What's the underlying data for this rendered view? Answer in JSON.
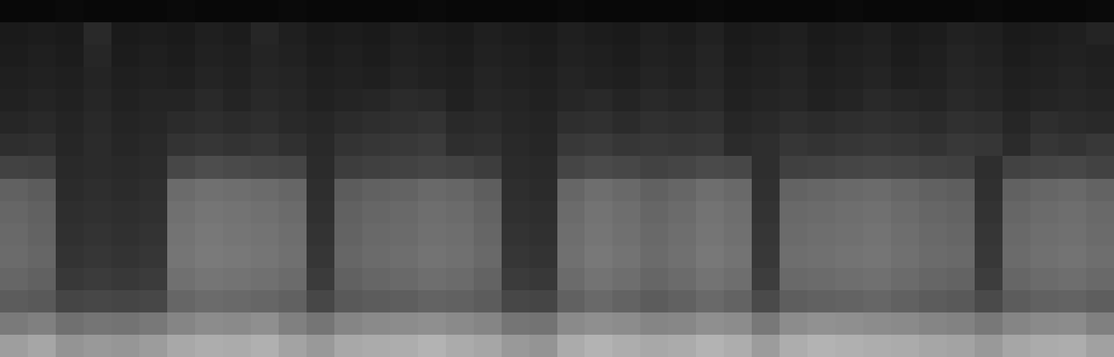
{
  "chart_data": {
    "type": "heatmap",
    "tick_labels": false,
    "zlim": [
      0,
      100
    ],
    "cells": [
      [
        3,
        3,
        4,
        3,
        3,
        3,
        4,
        3,
        3,
        3,
        4,
        3,
        3,
        3,
        3,
        4,
        3,
        3,
        3,
        3,
        4,
        3,
        3,
        3,
        3,
        4,
        3,
        3,
        3,
        3,
        4,
        3,
        3,
        3,
        3,
        4,
        3,
        3,
        3,
        4
      ],
      [
        10,
        11,
        10,
        16,
        10,
        11,
        10,
        12,
        11,
        15,
        12,
        10,
        11,
        10,
        12,
        11,
        10,
        12,
        11,
        10,
        12,
        11,
        10,
        12,
        11,
        13,
        10,
        11,
        12,
        10,
        11,
        12,
        10,
        11,
        13,
        12,
        10,
        11,
        12,
        14
      ],
      [
        11,
        12,
        11,
        15,
        11,
        12,
        11,
        13,
        12,
        14,
        13,
        11,
        12,
        11,
        13,
        12,
        11,
        13,
        12,
        11,
        13,
        12,
        11,
        13,
        12,
        14,
        11,
        12,
        13,
        11,
        12,
        13,
        11,
        12,
        14,
        13,
        11,
        12,
        13,
        12
      ],
      [
        12,
        13,
        12,
        14,
        12,
        13,
        12,
        14,
        13,
        15,
        14,
        12,
        13,
        12,
        14,
        13,
        12,
        14,
        13,
        12,
        14,
        13,
        12,
        14,
        13,
        15,
        12,
        13,
        14,
        12,
        13,
        14,
        12,
        13,
        15,
        14,
        12,
        13,
        14,
        13
      ],
      [
        13,
        14,
        13,
        15,
        13,
        14,
        14,
        16,
        14,
        16,
        15,
        13,
        14,
        15,
        17,
        16,
        13,
        15,
        14,
        13,
        15,
        16,
        14,
        16,
        15,
        16,
        13,
        14,
        15,
        13,
        14,
        16,
        15,
        14,
        16,
        15,
        13,
        14,
        15,
        14
      ],
      [
        15,
        16,
        14,
        16,
        14,
        15,
        17,
        18,
        17,
        18,
        16,
        15,
        17,
        18,
        19,
        20,
        16,
        17,
        15,
        14,
        18,
        19,
        17,
        19,
        18,
        19,
        15,
        16,
        18,
        17,
        18,
        19,
        18,
        17,
        19,
        18,
        15,
        18,
        17,
        16
      ],
      [
        18,
        19,
        15,
        17,
        15,
        16,
        20,
        21,
        20,
        21,
        19,
        16,
        20,
        21,
        22,
        23,
        18,
        19,
        16,
        15,
        22,
        23,
        21,
        22,
        21,
        22,
        17,
        18,
        21,
        20,
        21,
        22,
        21,
        20,
        22,
        21,
        17,
        21,
        20,
        22
      ],
      [
        26,
        25,
        16,
        17,
        16,
        17,
        28,
        30,
        29,
        28,
        27,
        17,
        24,
        25,
        26,
        27,
        26,
        24,
        17,
        16,
        27,
        29,
        28,
        26,
        27,
        29,
        28,
        18,
        25,
        26,
        27,
        28,
        27,
        26,
        25,
        18,
        26,
        27,
        28,
        26
      ],
      [
        38,
        36,
        17,
        18,
        17,
        18,
        42,
        44,
        43,
        42,
        40,
        18,
        36,
        38,
        39,
        41,
        40,
        37,
        18,
        17,
        40,
        43,
        41,
        38,
        40,
        43,
        41,
        19,
        39,
        40,
        41,
        42,
        40,
        38,
        37,
        19,
        38,
        40,
        41,
        39
      ],
      [
        40,
        38,
        18,
        19,
        18,
        19,
        44,
        46,
        45,
        44,
        42,
        19,
        38,
        40,
        41,
        43,
        42,
        39,
        19,
        18,
        42,
        45,
        43,
        40,
        42,
        45,
        43,
        20,
        41,
        42,
        43,
        44,
        42,
        40,
        39,
        20,
        40,
        42,
        43,
        41
      ],
      [
        41,
        39,
        19,
        20,
        19,
        20,
        45,
        47,
        46,
        45,
        43,
        20,
        39,
        41,
        42,
        44,
        43,
        40,
        20,
        19,
        43,
        46,
        44,
        41,
        43,
        46,
        44,
        21,
        42,
        43,
        44,
        45,
        43,
        41,
        40,
        21,
        41,
        43,
        44,
        42
      ],
      [
        42,
        40,
        20,
        21,
        20,
        21,
        46,
        48,
        47,
        46,
        44,
        21,
        40,
        42,
        43,
        45,
        44,
        41,
        21,
        20,
        44,
        47,
        45,
        42,
        44,
        47,
        45,
        22,
        43,
        44,
        45,
        46,
        44,
        42,
        41,
        22,
        42,
        44,
        45,
        43
      ],
      [
        40,
        38,
        22,
        23,
        22,
        23,
        44,
        46,
        45,
        44,
        42,
        23,
        38,
        40,
        41,
        43,
        42,
        39,
        23,
        22,
        42,
        45,
        43,
        40,
        42,
        45,
        43,
        24,
        41,
        42,
        43,
        44,
        42,
        40,
        39,
        24,
        40,
        42,
        43,
        41
      ],
      [
        36,
        35,
        27,
        28,
        27,
        28,
        40,
        42,
        41,
        40,
        38,
        28,
        35,
        36,
        37,
        39,
        38,
        36,
        28,
        27,
        38,
        41,
        39,
        36,
        38,
        41,
        39,
        29,
        37,
        38,
        39,
        40,
        38,
        36,
        35,
        29,
        36,
        38,
        39,
        37
      ],
      [
        48,
        50,
        44,
        46,
        45,
        47,
        52,
        55,
        54,
        56,
        50,
        46,
        52,
        54,
        55,
        56,
        54,
        52,
        46,
        45,
        54,
        56,
        55,
        52,
        53,
        56,
        55,
        47,
        55,
        57,
        56,
        55,
        54,
        52,
        51,
        47,
        52,
        54,
        55,
        50
      ],
      [
        62,
        65,
        58,
        60,
        59,
        61,
        66,
        68,
        67,
        69,
        64,
        60,
        66,
        67,
        68,
        70,
        67,
        65,
        60,
        58,
        67,
        70,
        68,
        66,
        67,
        70,
        68,
        61,
        68,
        70,
        69,
        68,
        67,
        65,
        64,
        60,
        65,
        67,
        68,
        63
      ]
    ]
  }
}
